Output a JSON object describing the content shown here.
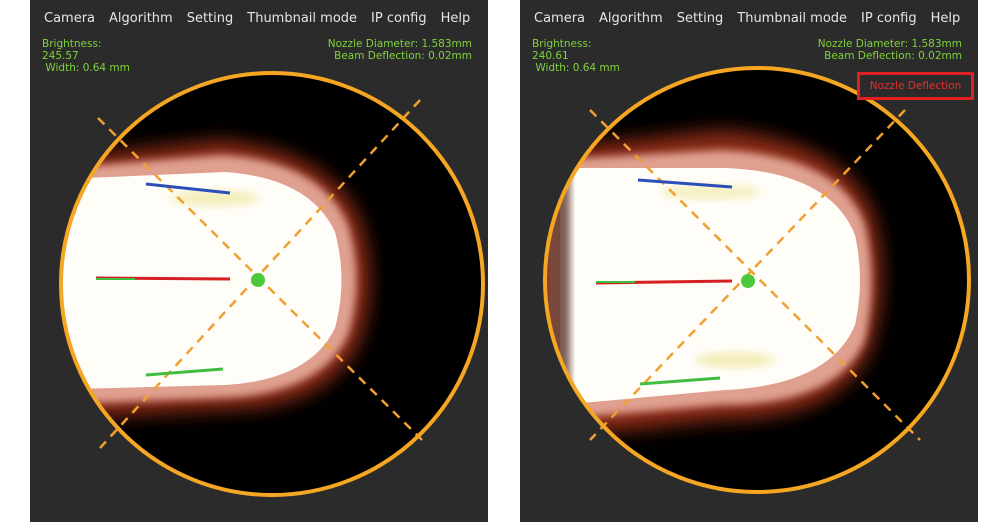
{
  "menu": [
    "Camera",
    "Algorithm",
    "Setting",
    "Thumbnail mode",
    "IP config",
    "Help"
  ],
  "panels": [
    {
      "brightness_label": "Brightness:",
      "brightness_value": "245.57",
      "width_text": " Width: 0.64 mm",
      "nozzle_diameter": "Nozzle Diameter: 1.583mm",
      "beam_deflection": "Beam Deflection: 0.02mm",
      "alert": ""
    },
    {
      "brightness_label": "Brightness:",
      "brightness_value": "240.61",
      "width_text": " Width: 0.64 mm",
      "nozzle_diameter": "Nozzle Diameter: 1.583mm",
      "beam_deflection": "Beam Deflection: 0.02mm",
      "alert": "Nozzle Deflection"
    }
  ],
  "colors": {
    "panel_bg": "#2b2b2b",
    "ring": "#f5a623",
    "crosshair": "#f0a030",
    "info_text": "#7fd23c",
    "center_dot": "#4cc93a",
    "top_edge": "#2a4fb8",
    "bottom_edge": "#3fbf3f",
    "axis_line": "#d42020",
    "alert": "#e02020"
  }
}
